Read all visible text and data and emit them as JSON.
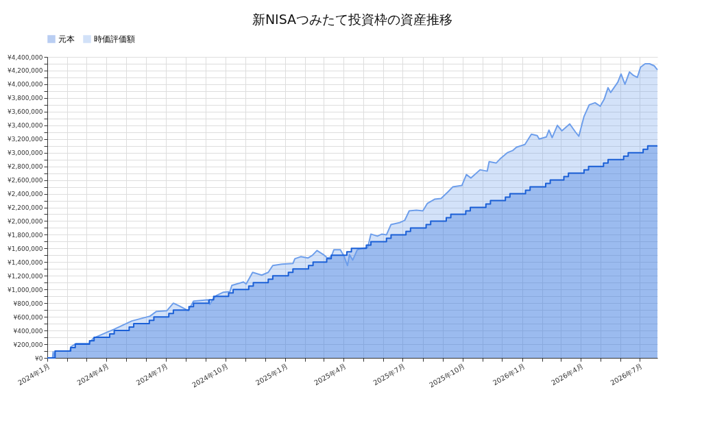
{
  "chart_data": {
    "type": "area",
    "title": "新NISAつみたて投資枠の資産推移",
    "legend": "top",
    "grid": true,
    "xlim": [
      "2024-01-01",
      "2026-07-28"
    ],
    "xticks": [
      {
        "value": "2024-01",
        "label": "2024年1月"
      },
      {
        "value": "2024-02",
        "label": null
      },
      {
        "value": "2024-03",
        "label": null
      },
      {
        "value": "2024-04",
        "label": "2024年4月"
      },
      {
        "value": "2024-05",
        "label": null
      },
      {
        "value": "2024-06",
        "label": null
      },
      {
        "value": "2024-07",
        "label": "2024年7月"
      },
      {
        "value": "2024-08",
        "label": null
      },
      {
        "value": "2024-09",
        "label": null
      },
      {
        "value": "2024-10",
        "label": "2024年10月"
      },
      {
        "value": "2024-11",
        "label": null
      },
      {
        "value": "2024-12",
        "label": null
      },
      {
        "value": "2025-01",
        "label": "2025年1月"
      },
      {
        "value": "2025-02",
        "label": null
      },
      {
        "value": "2025-03",
        "label": null
      },
      {
        "value": "2025-04",
        "label": "2025年4月"
      },
      {
        "value": "2025-05",
        "label": null
      },
      {
        "value": "2025-06",
        "label": null
      },
      {
        "value": "2025-07",
        "label": "2025年7月"
      },
      {
        "value": "2025-08",
        "label": null
      },
      {
        "value": "2025-09",
        "label": null
      },
      {
        "value": "2025-10",
        "label": "2025年10月"
      },
      {
        "value": "2025-11",
        "label": null
      },
      {
        "value": "2025-12",
        "label": null
      },
      {
        "value": "2026-01",
        "label": "2026年1月"
      },
      {
        "value": "2026-02",
        "label": null
      },
      {
        "value": "2026-03",
        "label": null
      },
      {
        "value": "2026-04",
        "label": "2026年4月"
      },
      {
        "value": "2026-05",
        "label": null
      },
      {
        "value": "2026-06",
        "label": null
      },
      {
        "value": "2026-07",
        "label": "2026年7月"
      }
    ],
    "ylim": [
      0,
      4400000
    ],
    "yticks": [
      {
        "value": 0,
        "label": "¥0"
      },
      {
        "value": 100000,
        "label": null
      },
      {
        "value": 200000,
        "label": "¥200,000"
      },
      {
        "value": 300000,
        "label": null
      },
      {
        "value": 400000,
        "label": "¥400,000"
      },
      {
        "value": 500000,
        "label": null
      },
      {
        "value": 600000,
        "label": "¥600,000"
      },
      {
        "value": 700000,
        "label": null
      },
      {
        "value": 800000,
        "label": "¥800,000"
      },
      {
        "value": 900000,
        "label": null
      },
      {
        "value": 1000000,
        "label": "¥1,000,000"
      },
      {
        "value": 1100000,
        "label": null
      },
      {
        "value": 1200000,
        "label": "¥1,200,000"
      },
      {
        "value": 1300000,
        "label": null
      },
      {
        "value": 1400000,
        "label": "¥1,400,000"
      },
      {
        "value": 1500000,
        "label": null
      },
      {
        "value": 1600000,
        "label": "¥1,600,000"
      },
      {
        "value": 1700000,
        "label": null
      },
      {
        "value": 1800000,
        "label": "¥1,800,000"
      },
      {
        "value": 1900000,
        "label": null
      },
      {
        "value": 2000000,
        "label": "¥2,000,000"
      },
      {
        "value": 2100000,
        "label": null
      },
      {
        "value": 2200000,
        "label": "¥2,200,000"
      },
      {
        "value": 2300000,
        "label": null
      },
      {
        "value": 2400000,
        "label": "¥2,400,000"
      },
      {
        "value": 2500000,
        "label": null
      },
      {
        "value": 2600000,
        "label": "¥2,600,000"
      },
      {
        "value": 2700000,
        "label": null
      },
      {
        "value": 2800000,
        "label": "¥2,800,000"
      },
      {
        "value": 2900000,
        "label": null
      },
      {
        "value": 3000000,
        "label": "¥3,000,000"
      },
      {
        "value": 3100000,
        "label": null
      },
      {
        "value": 3200000,
        "label": "¥3,200,000"
      },
      {
        "value": 3300000,
        "label": null
      },
      {
        "value": 3400000,
        "label": "¥3,400,000"
      },
      {
        "value": 3500000,
        "label": null
      },
      {
        "value": 3600000,
        "label": "¥3,600,000"
      },
      {
        "value": 3700000,
        "label": null
      },
      {
        "value": 3800000,
        "label": "¥3,800,000"
      },
      {
        "value": 3900000,
        "label": null
      },
      {
        "value": 4000000,
        "label": "¥4,000,000"
      },
      {
        "value": 4100000,
        "label": null
      },
      {
        "value": 4200000,
        "label": "¥4,200,000"
      },
      {
        "value": 4300000,
        "label": null
      },
      {
        "value": 4400000,
        "label": "¥4,400,000"
      }
    ],
    "series": [
      {
        "name": "元本",
        "type": "step",
        "color": "#1a5fd6",
        "x": [
          "2024-01-01",
          "2024-01-13",
          "2024-02-06",
          "2024-02-13",
          "2024-03-06",
          "2024-03-13",
          "2024-04-06",
          "2024-04-13",
          "2024-05-06",
          "2024-05-13",
          "2024-06-06",
          "2024-06-13",
          "2024-07-06",
          "2024-07-13",
          "2024-08-06",
          "2024-08-13",
          "2024-09-06",
          "2024-09-13",
          "2024-10-06",
          "2024-10-13",
          "2024-11-06",
          "2024-11-13",
          "2024-12-06",
          "2024-12-13",
          "2025-01-06",
          "2025-01-13",
          "2025-02-06",
          "2025-02-13",
          "2025-03-06",
          "2025-03-13",
          "2025-04-06",
          "2025-04-13",
          "2025-05-06",
          "2025-05-13",
          "2025-06-06",
          "2025-06-13",
          "2025-07-06",
          "2025-07-13",
          "2025-08-06",
          "2025-08-13",
          "2025-09-06",
          "2025-09-13",
          "2025-10-06",
          "2025-10-13",
          "2025-11-06",
          "2025-11-13",
          "2025-12-06",
          "2025-12-13",
          "2026-01-06",
          "2026-01-13",
          "2026-02-06",
          "2026-02-13",
          "2026-03-06",
          "2026-03-13",
          "2026-04-06",
          "2026-04-13",
          "2026-05-06",
          "2026-05-13",
          "2026-06-06",
          "2026-06-13",
          "2026-07-06",
          "2026-07-13",
          "2026-07-28"
        ],
        "values": [
          0,
          100000,
          150000,
          200000,
          250000,
          300000,
          350000,
          400000,
          450000,
          500000,
          550000,
          600000,
          650000,
          700000,
          750000,
          800000,
          850000,
          900000,
          950000,
          1000000,
          1050000,
          1100000,
          1150000,
          1200000,
          1250000,
          1300000,
          1350000,
          1400000,
          1450000,
          1500000,
          1550000,
          1600000,
          1650000,
          1700000,
          1750000,
          1800000,
          1850000,
          1900000,
          1950000,
          2000000,
          2050000,
          2100000,
          2150000,
          2200000,
          2250000,
          2300000,
          2350000,
          2400000,
          2450000,
          2500000,
          2550000,
          2600000,
          2650000,
          2700000,
          2750000,
          2800000,
          2850000,
          2900000,
          2950000,
          3000000,
          3050000,
          3100000,
          3100000
        ]
      },
      {
        "name": "時価評価額",
        "color": "#6d9eeb",
        "x": [
          "2024-01-01",
          "2024-01-09",
          "2024-01-10",
          "2024-01-11",
          "2024-01-13",
          "2024-02-05",
          "2024-02-06",
          "2024-02-14",
          "2024-03-05",
          "2024-03-12",
          "2024-04-03",
          "2024-04-13",
          "2024-05-10",
          "2024-06-07",
          "2024-06-17",
          "2024-07-03",
          "2024-07-13",
          "2024-07-22",
          "2024-08-05",
          "2024-08-13",
          "2024-09-04",
          "2024-09-07",
          "2024-09-12",
          "2024-09-17",
          "2024-09-28",
          "2024-10-08",
          "2024-10-11",
          "2024-10-29",
          "2024-11-02",
          "2024-11-12",
          "2024-11-26",
          "2024-12-06",
          "2024-12-13",
          "2024-12-27",
          "2025-01-13",
          "2025-01-16",
          "2025-01-25",
          "2025-02-05",
          "2025-02-12",
          "2025-02-19",
          "2025-03-01",
          "2025-03-07",
          "2025-03-13",
          "2025-03-17",
          "2025-03-27",
          "2025-04-02",
          "2025-04-07",
          "2025-04-10",
          "2025-04-15",
          "2025-04-22",
          "2025-04-29",
          "2025-05-08",
          "2025-05-13",
          "2025-05-23",
          "2025-05-30",
          "2025-06-06",
          "2025-06-13",
          "2025-06-27",
          "2025-07-04",
          "2025-07-11",
          "2025-07-22",
          "2025-08-01",
          "2025-08-08",
          "2025-08-19",
          "2025-08-29",
          "2025-09-09",
          "2025-09-16",
          "2025-09-30",
          "2025-10-07",
          "2025-10-14",
          "2025-10-28",
          "2025-11-08",
          "2025-11-11",
          "2025-11-22",
          "2025-11-29",
          "2025-12-09",
          "2025-12-17",
          "2025-12-23",
          "2026-01-05",
          "2026-01-15",
          "2026-01-24",
          "2026-01-27",
          "2026-02-07",
          "2026-02-11",
          "2026-02-16",
          "2026-02-24",
          "2026-03-03",
          "2026-03-15",
          "2026-03-24",
          "2026-03-29",
          "2026-04-06",
          "2026-04-14",
          "2026-04-23",
          "2026-05-01",
          "2026-05-07",
          "2026-05-13",
          "2026-05-17",
          "2026-05-28",
          "2026-06-02",
          "2026-06-08",
          "2026-06-15",
          "2026-06-21",
          "2026-06-27",
          "2026-07-02",
          "2026-07-09",
          "2026-07-16",
          "2026-07-23",
          "2026-07-28"
        ],
        "values": [
          0,
          0,
          90000,
          0,
          100000,
          100000,
          160000,
          210000,
          210000,
          290000,
          380000,
          420000,
          540000,
          610000,
          680000,
          690000,
          800000,
          760000,
          690000,
          830000,
          850000,
          780000,
          860000,
          910000,
          960000,
          970000,
          1060000,
          1110000,
          1080000,
          1250000,
          1210000,
          1250000,
          1350000,
          1370000,
          1380000,
          1450000,
          1480000,
          1460000,
          1500000,
          1570000,
          1510000,
          1460000,
          1480000,
          1580000,
          1580000,
          1480000,
          1350000,
          1510000,
          1430000,
          1580000,
          1600000,
          1610000,
          1810000,
          1780000,
          1810000,
          1800000,
          1950000,
          1980000,
          2010000,
          2150000,
          2160000,
          2150000,
          2260000,
          2320000,
          2330000,
          2430000,
          2500000,
          2520000,
          2680000,
          2630000,
          2750000,
          2730000,
          2870000,
          2850000,
          2920000,
          3000000,
          3030000,
          3080000,
          3120000,
          3270000,
          3250000,
          3200000,
          3230000,
          3330000,
          3220000,
          3400000,
          3320000,
          3420000,
          3300000,
          3240000,
          3530000,
          3700000,
          3730000,
          3680000,
          3780000,
          3950000,
          3880000,
          4030000,
          4150000,
          4000000,
          4180000,
          4130000,
          4100000,
          4250000,
          4300000,
          4300000,
          4270000,
          4210000
        ]
      }
    ]
  }
}
